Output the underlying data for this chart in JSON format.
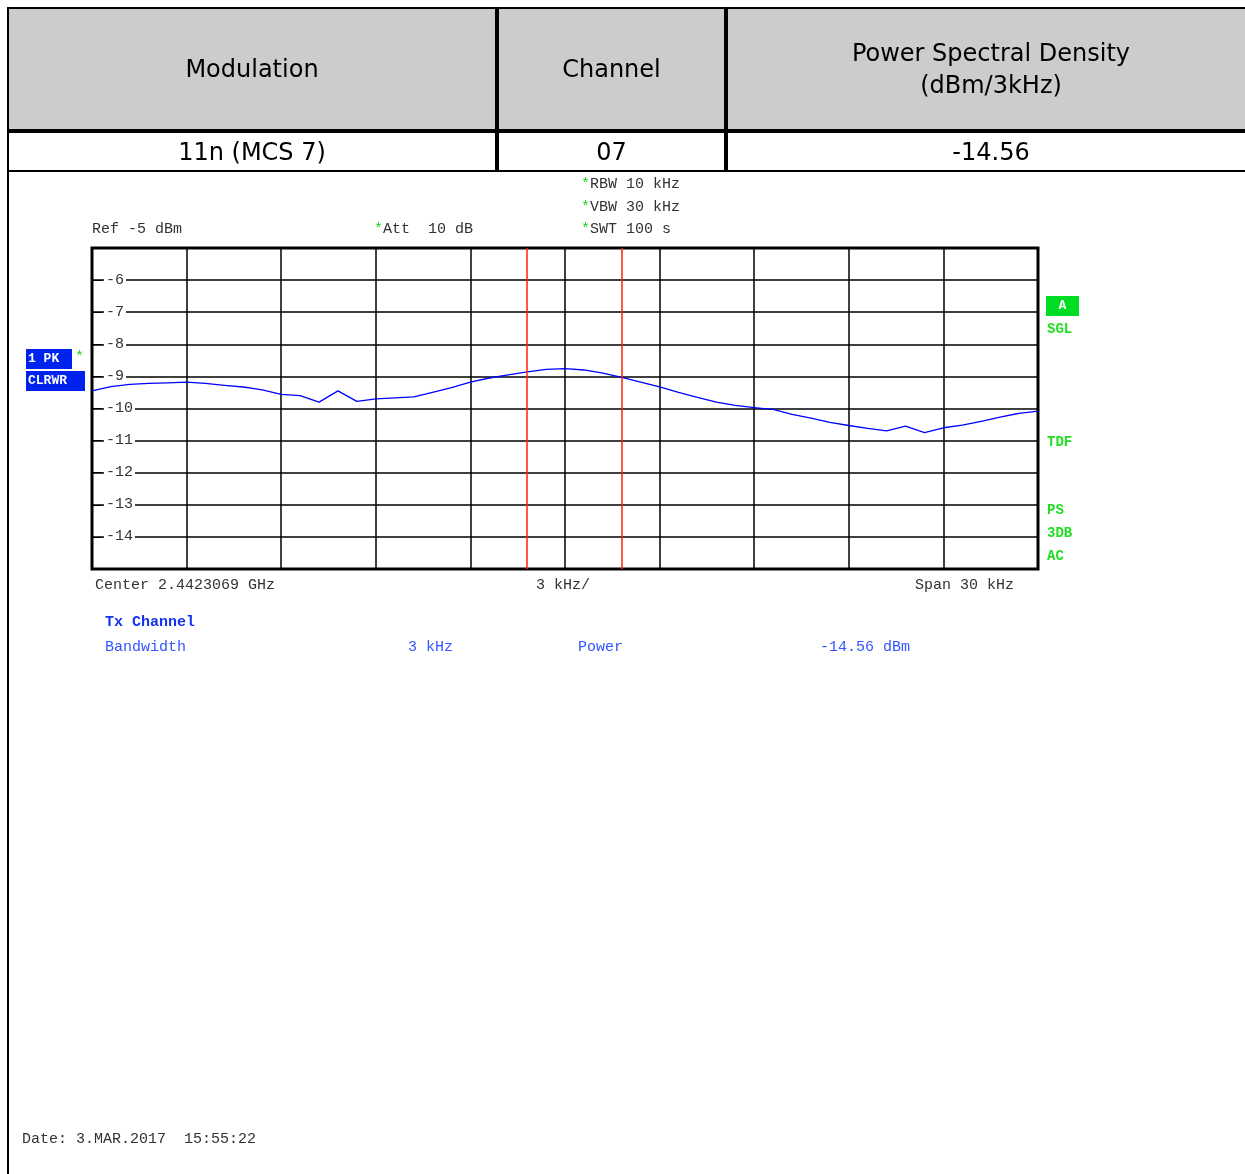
{
  "chart_data": {
    "type": "line",
    "categories": [
      null,
      null,
      null,
      null,
      null,
      null,
      null,
      null,
      null,
      null,
      null,
      null,
      null,
      null,
      null,
      null,
      null,
      null,
      null,
      null,
      null,
      null,
      null,
      null,
      null,
      null,
      null,
      null,
      null,
      null,
      null,
      null,
      null,
      null,
      null,
      null,
      null,
      null,
      null,
      null,
      null,
      null,
      null,
      null,
      null,
      null,
      null,
      null,
      null,
      null,
      null
    ],
    "series": [
      {
        "color": "#0000ff",
        "values": [
          -9.45,
          -9.32,
          -9.25,
          -9.22,
          -9.2,
          -9.18,
          -9.22,
          -9.28,
          -9.33,
          -9.42,
          -9.56,
          -9.6,
          -9.8,
          -9.45,
          -9.78,
          -9.7,
          -9.67,
          -9.64,
          -9.5,
          -9.35,
          -9.18,
          -9.05,
          -8.95,
          -8.86,
          -8.78,
          -8.76,
          -8.8,
          -8.9,
          -9.03,
          -9.18,
          -9.33,
          -9.5,
          -9.65,
          -9.8,
          -9.9,
          -9.97,
          -10.03,
          -10.18,
          -10.3,
          -10.43,
          -10.53,
          -10.62,
          -10.7,
          -10.55,
          -10.75,
          -10.6,
          -10.52,
          -10.4,
          -10.27,
          -10.15,
          -10.08
        ]
      }
    ],
    "ylim": [
      -15,
      -5
    ],
    "yticks": [
      -6,
      -7,
      -8,
      -9,
      -10,
      -11,
      -12,
      -13,
      -14
    ],
    "tick_labels": "y",
    "grid": true,
    "marker": "none",
    "line_style": "solid",
    "annotations": [
      "Modulation",
      "Channel",
      "Power Spectral Density (dBm/3kHz)",
      "11n (MCS 7)",
      "07",
      "-14.56",
      "Ref -5 dBm",
      "*Att  10 dB",
      "*RBW 10 kHz",
      "*VBW 30 kHz",
      "*SWT 100 s",
      "1 PK",
      "CLRWR",
      "A",
      "SGL",
      "TDF",
      "PS",
      "3DB",
      "AC",
      "Center 2.4423069 GHz",
      "3 kHz/",
      "Span 30 kHz",
      "Tx Channel",
      "Bandwidth",
      "3 kHz",
      "Power",
      "-14.56 dBm",
      "Date: 3.MAR.2017  15:55:22",
      "*"
    ]
  }
}
